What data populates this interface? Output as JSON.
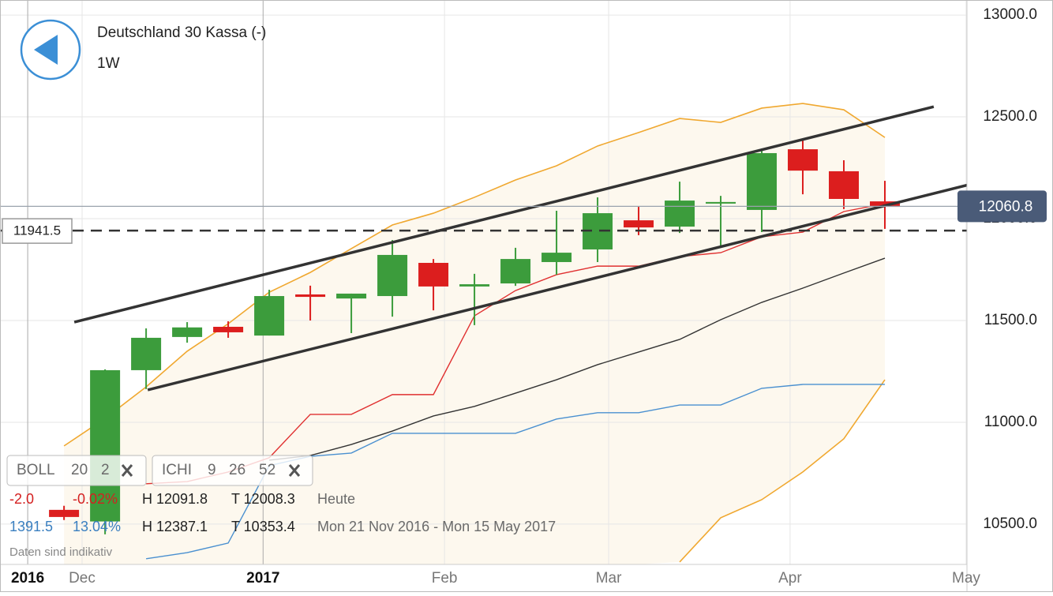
{
  "header": {
    "title": "Deutschland 30 Kassa (-)",
    "interval": "1W"
  },
  "chart_data": {
    "type": "candlestick",
    "categories": [
      null,
      null,
      null,
      null,
      null,
      null,
      null,
      null,
      null,
      null,
      null,
      null,
      null,
      null,
      null,
      null,
      null,
      null,
      null,
      null,
      null
    ],
    "open": [
      10570,
      10513,
      11256,
      11419,
      11469,
      11426,
      11628,
      11608,
      11620,
      11783,
      11667,
      11682,
      11787,
      11849,
      11992,
      11961,
      12074,
      12043,
      12341,
      12233,
      12085
    ],
    "high": [
      10590,
      11260,
      11461,
      11492,
      11496,
      11651,
      11671,
      11632,
      11895,
      11802,
      11729,
      11857,
      12039,
      12105,
      12058,
      12182,
      12112,
      12345,
      12388,
      12287,
      12186
    ],
    "low": [
      10520,
      10450,
      11163,
      11391,
      11415,
      11426,
      11500,
      11438,
      11519,
      11550,
      11477,
      11670,
      11725,
      11787,
      11919,
      11930,
      11864,
      11934,
      12120,
      12047,
      11950
    ],
    "close": [
      10535,
      11256,
      11415,
      11466,
      11442,
      11620,
      11616,
      11632,
      11822,
      11667,
      11678,
      11802,
      11833,
      12027,
      11957,
      12089,
      12082,
      12322,
      12236,
      12097,
      12058
    ],
    "up_color": "#3c9c3c",
    "down_color": "#dc1e1e",
    "bands": {
      "color": "#f0a830",
      "fill": "#fdf8ee",
      "upper": [
        10884,
        11019,
        11174,
        11349,
        11484,
        11639,
        11736,
        11853,
        11969,
        12027,
        12105,
        12190,
        12260,
        12357,
        12423,
        12492,
        12473,
        12543,
        12566,
        12535,
        12399
      ],
      "lower": [
        null,
        null,
        null,
        null,
        null,
        null,
        null,
        null,
        null,
        null,
        null,
        null,
        null,
        null,
        null,
        10314,
        10531,
        10620,
        10756,
        10919,
        11209
      ]
    },
    "lines": [
      {
        "color": "#e03030",
        "values": [
          null,
          null,
          10698,
          10709,
          10756,
          10826,
          11039,
          11039,
          11136,
          11136,
          11523,
          11647,
          11725,
          11767,
          11767,
          11814,
          11833,
          11911,
          11934,
          12035,
          12074
        ]
      },
      {
        "color": "#333333",
        "values": [
          null,
          null,
          null,
          null,
          null,
          10814,
          10837,
          10891,
          10957,
          11031,
          11078,
          11143,
          11209,
          11283,
          11345,
          11407,
          11504,
          11589,
          11659,
          11733,
          11806
        ]
      },
      {
        "color": "#4a90d0",
        "values": [
          null,
          null,
          10330,
          10360,
          10407,
          10787,
          10833,
          10849,
          10946,
          10946,
          10946,
          10946,
          11016,
          11047,
          11047,
          11085,
          11085,
          11167,
          11186,
          11186,
          11186
        ]
      }
    ],
    "trendlines": [
      {
        "start": [
          0.25,
          11492
        ],
        "end": [
          21.19,
          12550
        ]
      },
      {
        "start": [
          2.04,
          11159
        ],
        "end": [
          22.96,
          12213
        ]
      }
    ],
    "last_price": 12060.8,
    "level": 11941.5,
    "xlim": [
      -1.56,
      22.0
    ],
    "ylim": [
      10302,
      13074
    ],
    "xticks": [
      {
        "value": -0.885,
        "label": "2016"
      },
      {
        "value": 0.44,
        "label": "Dec"
      },
      {
        "value": 4.85,
        "label": "2017"
      },
      {
        "value": 9.27,
        "label": "Feb"
      },
      {
        "value": 13.27,
        "label": "Mar"
      },
      {
        "value": 17.69,
        "label": "Apr"
      },
      {
        "value": 21.98,
        "label": "May"
      }
    ],
    "yticks": [
      {
        "value": 10500,
        "label": "10500.0"
      },
      {
        "value": 11000,
        "label": "11000.0"
      },
      {
        "value": 11500,
        "label": "11500.0"
      },
      {
        "value": 12000,
        "label": "12000.0"
      },
      {
        "value": 12500,
        "label": "12500.0"
      },
      {
        "value": 13000,
        "label": "13000.0"
      }
    ],
    "grid": true
  },
  "indicators": [
    {
      "name": "BOLL",
      "params": [
        "20",
        "2"
      ]
    },
    {
      "name": "ICHI",
      "params": [
        "9",
        "26",
        "52"
      ]
    }
  ],
  "stats": [
    {
      "change": "-2.0",
      "percent": "-0.02%",
      "high": "H 12091.8",
      "low": "T 12008.3",
      "period": "Heute"
    },
    {
      "change": "1391.5",
      "percent": "13.04%",
      "high": "H 12387.1",
      "low": "T 10353.4",
      "period": "Mon 21 Nov 2016 - Mon 15 May 2017"
    }
  ],
  "disclaimer": "Daten sind indikativ"
}
